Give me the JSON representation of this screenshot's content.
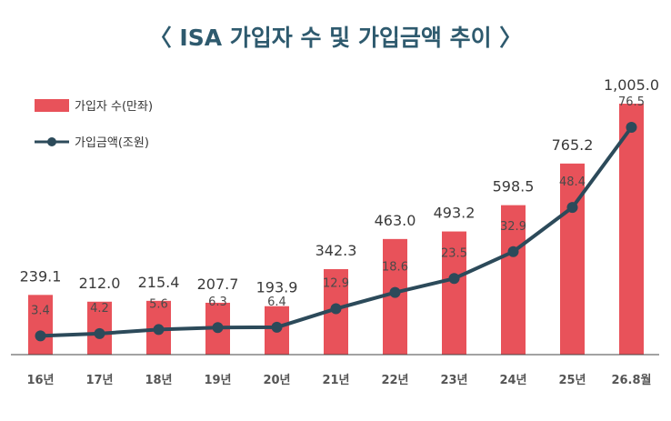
{
  "title": "〈 ISA 가입자 수 및 가입금액 추이 〉",
  "colors": {
    "bar": "#e8525a",
    "line": "#2c4a5a",
    "title": "#2e5a6e",
    "axis": "#444444"
  },
  "chart_data": {
    "type": "bar",
    "title": "〈 ISA 가입자 수 및 가입금액 추이 〉",
    "categories": [
      "16년",
      "17년",
      "18년",
      "19년",
      "20년",
      "21년",
      "22년",
      "23년",
      "24년",
      "25년",
      "26.8월"
    ],
    "series": [
      {
        "name": "가입자 수(만좌)",
        "type": "bar",
        "values": [
          239.1,
          212.0,
          215.4,
          207.7,
          193.9,
          342.3,
          463.0,
          493.2,
          598.5,
          765.2,
          1005.0
        ],
        "labels": [
          "239.1",
          "212.0",
          "215.4",
          "207.7",
          "193.9",
          "342.3",
          "463.0",
          "493.2",
          "598.5",
          "765.2",
          "1,005.0"
        ]
      },
      {
        "name": "가입금액(조원)",
        "type": "line",
        "values": [
          3.4,
          4.2,
          5.6,
          6.3,
          6.4,
          12.9,
          18.6,
          23.5,
          32.9,
          48.4,
          76.5
        ],
        "labels": [
          "3.4",
          "4.2",
          "5.6",
          "6.3",
          "6.4",
          "12.9",
          "18.6",
          "23.5",
          "32.9",
          "48.4",
          "76.5"
        ]
      }
    ],
    "legend": "top-left",
    "grid": false
  }
}
